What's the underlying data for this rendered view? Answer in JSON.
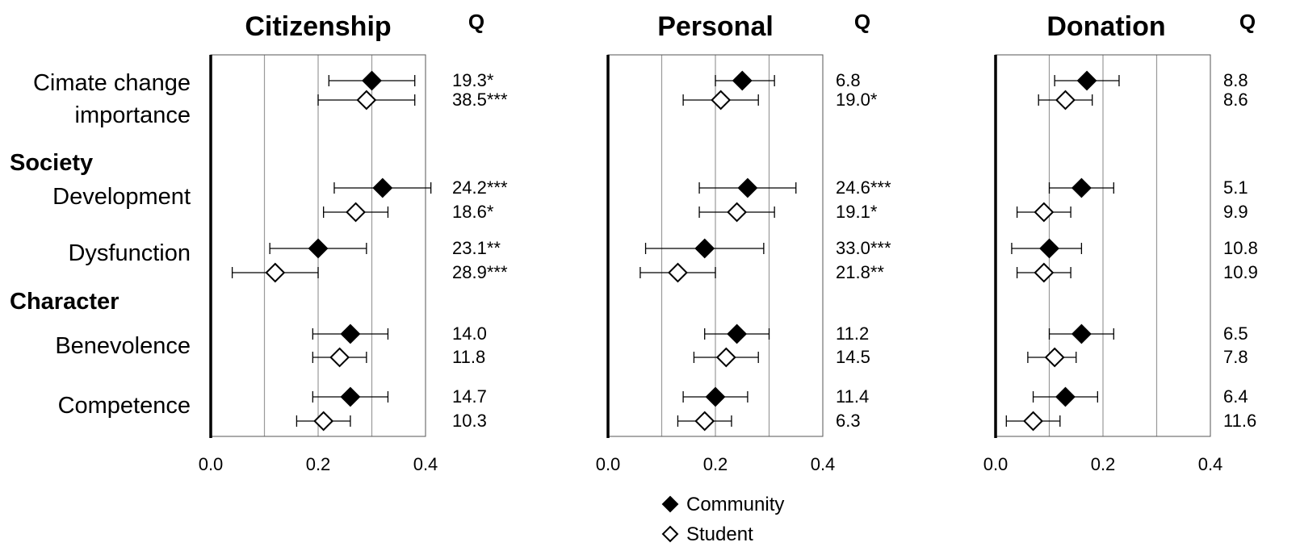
{
  "chart_data": {
    "type": "scatter",
    "subtype": "forest-plot-with-error-bars",
    "xlim": [
      0,
      0.4
    ],
    "xticks": [
      "0.0",
      "0.2",
      "0.4"
    ],
    "grid": "vertical lines at 0.1, 0.2, 0.3",
    "q_header": "Q",
    "legend": {
      "placement": "bottom-center",
      "entries": [
        {
          "label": "Community",
          "marker": "filled-diamond",
          "color": "#000000"
        },
        {
          "label": "Student",
          "marker": "open-diamond",
          "color": "#ffffff"
        }
      ]
    },
    "groups": [
      {
        "label": "",
        "items": [
          {
            "label_lines": [
              "Cimate change",
              "importance"
            ]
          }
        ]
      },
      {
        "label": "Society",
        "items": [
          {
            "label_lines": [
              "Development"
            ]
          },
          {
            "label_lines": [
              "Dysfunction"
            ]
          }
        ]
      },
      {
        "label": "Character",
        "items": [
          {
            "label_lines": [
              "Benevolence"
            ]
          },
          {
            "label_lines": [
              "Competence"
            ]
          }
        ]
      }
    ],
    "panels": [
      {
        "title": "Citizenship",
        "rows": [
          {
            "community": {
              "value": 0.3,
              "lo": 0.22,
              "hi": 0.38,
              "q": "19.3*"
            },
            "student": {
              "value": 0.29,
              "lo": 0.2,
              "hi": 0.38,
              "q": "38.5***"
            }
          },
          {
            "community": {
              "value": 0.32,
              "lo": 0.23,
              "hi": 0.41,
              "q": "24.2***"
            },
            "student": {
              "value": 0.27,
              "lo": 0.21,
              "hi": 0.33,
              "q": "18.6*"
            }
          },
          {
            "community": {
              "value": 0.2,
              "lo": 0.11,
              "hi": 0.29,
              "q": "23.1**"
            },
            "student": {
              "value": 0.12,
              "lo": 0.04,
              "hi": 0.2,
              "q": "28.9***"
            }
          },
          {
            "community": {
              "value": 0.26,
              "lo": 0.19,
              "hi": 0.33,
              "q": "14.0"
            },
            "student": {
              "value": 0.24,
              "lo": 0.19,
              "hi": 0.29,
              "q": "11.8"
            }
          },
          {
            "community": {
              "value": 0.26,
              "lo": 0.19,
              "hi": 0.33,
              "q": "14.7"
            },
            "student": {
              "value": 0.21,
              "lo": 0.16,
              "hi": 0.26,
              "q": "10.3"
            }
          }
        ]
      },
      {
        "title": "Personal",
        "rows": [
          {
            "community": {
              "value": 0.25,
              "lo": 0.2,
              "hi": 0.31,
              "q": "6.8"
            },
            "student": {
              "value": 0.21,
              "lo": 0.14,
              "hi": 0.28,
              "q": "19.0*"
            }
          },
          {
            "community": {
              "value": 0.26,
              "lo": 0.17,
              "hi": 0.35,
              "q": "24.6***"
            },
            "student": {
              "value": 0.24,
              "lo": 0.17,
              "hi": 0.31,
              "q": "19.1*"
            }
          },
          {
            "community": {
              "value": 0.18,
              "lo": 0.07,
              "hi": 0.29,
              "q": "33.0***"
            },
            "student": {
              "value": 0.13,
              "lo": 0.06,
              "hi": 0.2,
              "q": "21.8**"
            }
          },
          {
            "community": {
              "value": 0.24,
              "lo": 0.18,
              "hi": 0.3,
              "q": "11.2"
            },
            "student": {
              "value": 0.22,
              "lo": 0.16,
              "hi": 0.28,
              "q": "14.5"
            }
          },
          {
            "community": {
              "value": 0.2,
              "lo": 0.14,
              "hi": 0.26,
              "q": "11.4"
            },
            "student": {
              "value": 0.18,
              "lo": 0.13,
              "hi": 0.23,
              "q": "6.3"
            }
          }
        ]
      },
      {
        "title": "Donation",
        "rows": [
          {
            "community": {
              "value": 0.17,
              "lo": 0.11,
              "hi": 0.23,
              "q": "8.8"
            },
            "student": {
              "value": 0.13,
              "lo": 0.08,
              "hi": 0.18,
              "q": "8.6"
            }
          },
          {
            "community": {
              "value": 0.16,
              "lo": 0.1,
              "hi": 0.22,
              "q": "5.1"
            },
            "student": {
              "value": 0.09,
              "lo": 0.04,
              "hi": 0.14,
              "q": "9.9"
            }
          },
          {
            "community": {
              "value": 0.1,
              "lo": 0.03,
              "hi": 0.16,
              "q": "10.8"
            },
            "student": {
              "value": 0.09,
              "lo": 0.04,
              "hi": 0.14,
              "q": "10.9"
            }
          },
          {
            "community": {
              "value": 0.16,
              "lo": 0.1,
              "hi": 0.22,
              "q": "6.5"
            },
            "student": {
              "value": 0.11,
              "lo": 0.06,
              "hi": 0.15,
              "q": "7.8"
            }
          },
          {
            "community": {
              "value": 0.13,
              "lo": 0.07,
              "hi": 0.19,
              "q": "6.4"
            },
            "student": {
              "value": 0.07,
              "lo": 0.02,
              "hi": 0.12,
              "q": "11.6"
            }
          }
        ]
      }
    ]
  }
}
